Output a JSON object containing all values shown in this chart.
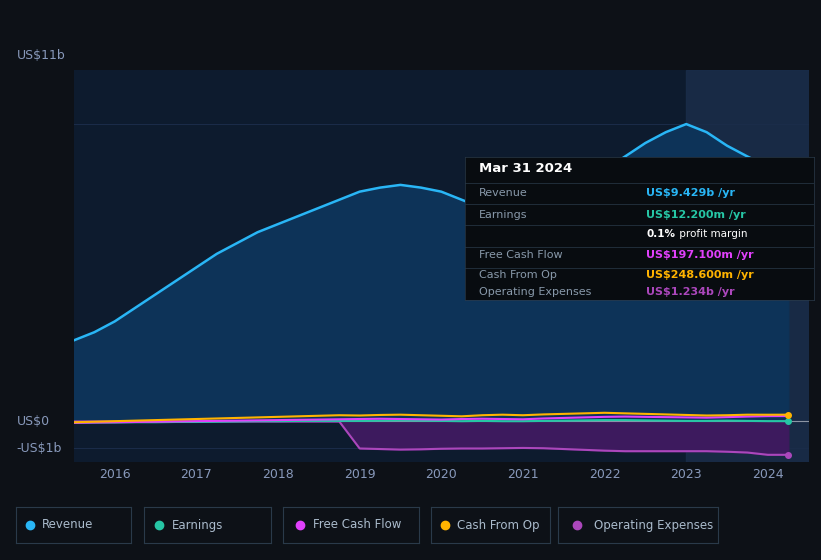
{
  "bg_color": "#0d1117",
  "plot_bg_color": "#0d1b2e",
  "grid_color": "#1e3050",
  "ylabel_top": "US$11b",
  "ylabel_mid": "US$0",
  "ylabel_bot": "-US$1b",
  "years": [
    2015.5,
    2015.75,
    2016.0,
    2016.25,
    2016.5,
    2016.75,
    2017.0,
    2017.25,
    2017.5,
    2017.75,
    2018.0,
    2018.25,
    2018.5,
    2018.75,
    2019.0,
    2019.25,
    2019.5,
    2019.75,
    2020.0,
    2020.25,
    2020.5,
    2020.75,
    2021.0,
    2021.25,
    2021.5,
    2021.75,
    2022.0,
    2022.25,
    2022.5,
    2022.75,
    2023.0,
    2023.25,
    2023.5,
    2023.75,
    2024.0,
    2024.25
  ],
  "revenue": [
    3.0,
    3.3,
    3.7,
    4.2,
    4.7,
    5.2,
    5.7,
    6.2,
    6.6,
    7.0,
    7.3,
    7.6,
    7.9,
    8.2,
    8.5,
    8.65,
    8.75,
    8.65,
    8.5,
    8.2,
    7.9,
    7.6,
    7.4,
    7.7,
    8.2,
    8.7,
    9.3,
    9.8,
    10.3,
    10.7,
    11.0,
    10.7,
    10.2,
    9.8,
    9.429,
    9.43
  ],
  "earnings": [
    -0.05,
    -0.04,
    -0.04,
    -0.03,
    -0.03,
    -0.02,
    -0.02,
    -0.01,
    0.0,
    0.01,
    0.01,
    0.02,
    0.02,
    0.02,
    0.02,
    0.03,
    0.04,
    0.03,
    0.02,
    0.01,
    0.02,
    0.01,
    0.01,
    0.02,
    0.03,
    0.04,
    0.05,
    0.05,
    0.04,
    0.03,
    0.02,
    0.02,
    0.03,
    0.02,
    0.012,
    0.012
  ],
  "free_cash_flow": [
    -0.05,
    -0.04,
    -0.03,
    -0.02,
    -0.01,
    0.0,
    0.01,
    0.02,
    0.03,
    0.04,
    0.05,
    0.06,
    0.07,
    0.08,
    0.09,
    0.1,
    0.09,
    0.08,
    0.07,
    0.09,
    0.1,
    0.09,
    0.08,
    0.11,
    0.13,
    0.15,
    0.17,
    0.18,
    0.17,
    0.16,
    0.15,
    0.14,
    0.16,
    0.18,
    0.197,
    0.2
  ],
  "cash_from_op": [
    -0.03,
    -0.01,
    0.01,
    0.03,
    0.05,
    0.07,
    0.09,
    0.11,
    0.13,
    0.15,
    0.17,
    0.19,
    0.21,
    0.23,
    0.22,
    0.24,
    0.25,
    0.23,
    0.21,
    0.19,
    0.23,
    0.25,
    0.23,
    0.26,
    0.28,
    0.3,
    0.32,
    0.3,
    0.28,
    0.26,
    0.24,
    0.22,
    0.23,
    0.25,
    0.2486,
    0.25
  ],
  "op_expenses": [
    0.0,
    0.0,
    0.0,
    0.0,
    0.0,
    0.0,
    0.0,
    0.0,
    0.0,
    0.0,
    0.0,
    0.0,
    0.0,
    0.0,
    -1.0,
    -1.02,
    -1.04,
    -1.03,
    -1.01,
    -1.0,
    -1.0,
    -0.99,
    -0.98,
    -0.99,
    -1.02,
    -1.05,
    -1.08,
    -1.1,
    -1.1,
    -1.1,
    -1.1,
    -1.1,
    -1.12,
    -1.15,
    -1.234,
    -1.234
  ],
  "revenue_color": "#29b6f6",
  "revenue_fill": "#0d3358",
  "earnings_color": "#26c6a5",
  "free_cash_flow_color": "#e040fb",
  "cash_from_op_color": "#ffb300",
  "op_expenses_color": "#ab47bc",
  "op_expenses_fill": "#3d1a5e",
  "highlight_color": "#1a2d4a",
  "info_box": {
    "date": "Mar 31 2024",
    "revenue_label": "Revenue",
    "revenue_value": "US$9.429b",
    "revenue_color": "#29b6f6",
    "earnings_label": "Earnings",
    "earnings_value": "US$12.200m",
    "earnings_color": "#26c6a5",
    "margin_text": "0.1%",
    "margin_text2": " profit margin",
    "fcf_label": "Free Cash Flow",
    "fcf_value": "US$197.100m",
    "fcf_color": "#e040fb",
    "cfop_label": "Cash From Op",
    "cfop_value": "US$248.600m",
    "cfop_color": "#ffb300",
    "opex_label": "Operating Expenses",
    "opex_value": "US$1.234b",
    "opex_color": "#ab47bc"
  },
  "legend": [
    {
      "label": "Revenue",
      "color": "#29b6f6"
    },
    {
      "label": "Earnings",
      "color": "#26c6a5"
    },
    {
      "label": "Free Cash Flow",
      "color": "#e040fb"
    },
    {
      "label": "Cash From Op",
      "color": "#ffb300"
    },
    {
      "label": "Operating Expenses",
      "color": "#ab47bc"
    }
  ],
  "ylim": [
    -1.5,
    13.0
  ],
  "y_zero": 0.0,
  "y_top": 11.0,
  "y_bot": -1.0,
  "xticks": [
    2016,
    2017,
    2018,
    2019,
    2020,
    2021,
    2022,
    2023,
    2024
  ],
  "xmin": 2015.5,
  "xmax": 2024.5
}
